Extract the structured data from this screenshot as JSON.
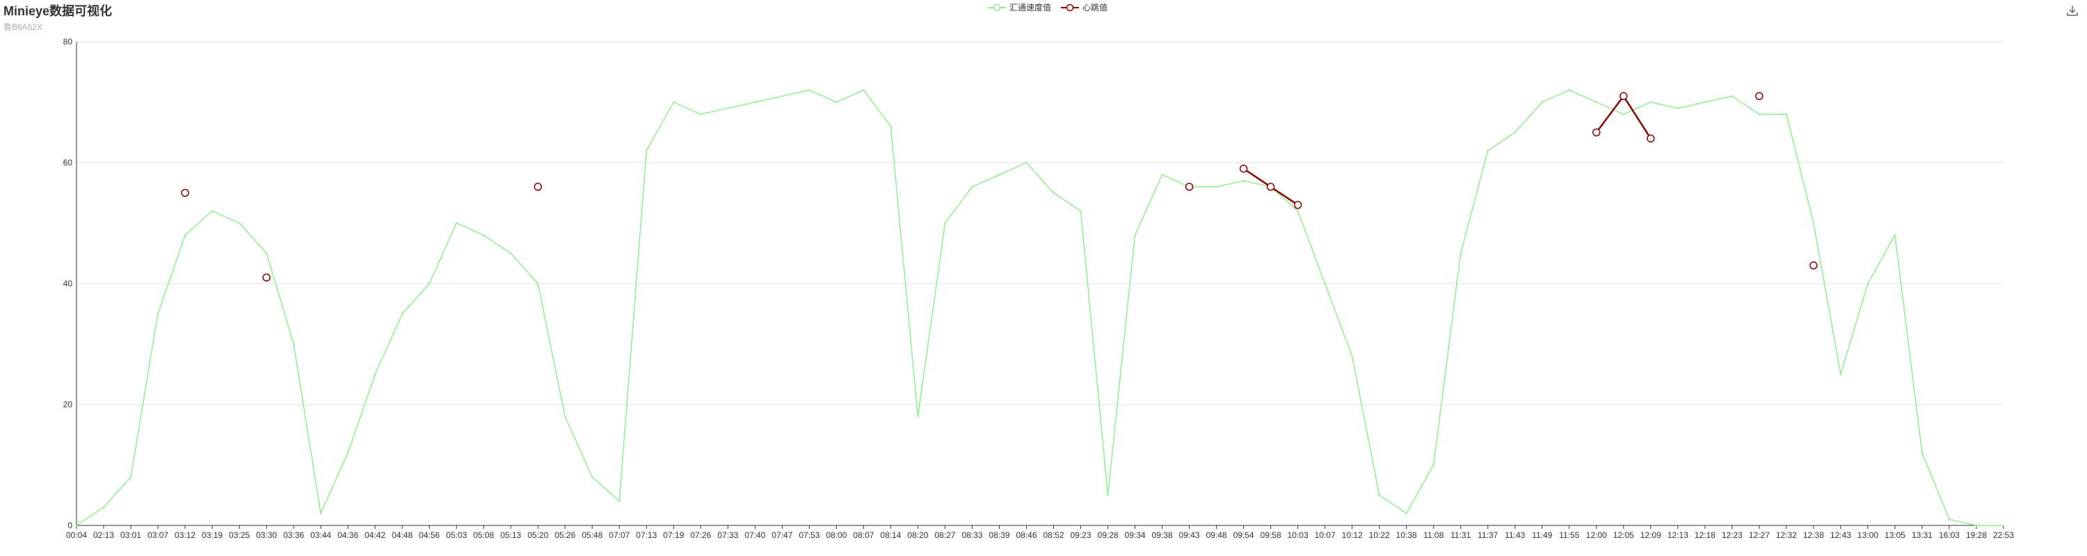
{
  "title": "Minieye数据可视化",
  "subtitle": "鲁B6A52X",
  "legend": {
    "speed_label": "汇通速度值",
    "heartbeat_label": "心跳值"
  },
  "colors": {
    "speed": "#90ee90",
    "heartbeat": "#8b0000",
    "axis": "#333333",
    "grid": "#e0e0e0"
  },
  "icons": {
    "download": "download-icon"
  },
  "chart_data": {
    "type": "line",
    "ylim": [
      0,
      80
    ],
    "yticks": [
      0,
      20,
      40,
      60,
      80
    ],
    "grid": "horizontal",
    "legend_position": "top-center",
    "categories": [
      "00:04",
      "02:13",
      "03:01",
      "03:07",
      "03:12",
      "03:19",
      "03:25",
      "03:30",
      "03:36",
      "03:44",
      "04:36",
      "04:42",
      "04:48",
      "04:56",
      "05:03",
      "05:08",
      "05:13",
      "05:20",
      "05:26",
      "05:48",
      "07:07",
      "07:13",
      "07:19",
      "07:26",
      "07:33",
      "07:40",
      "07:47",
      "07:53",
      "08:00",
      "08:07",
      "08:14",
      "08:20",
      "08:27",
      "08:33",
      "08:39",
      "08:46",
      "08:52",
      "09:23",
      "09:28",
      "09:34",
      "09:38",
      "09:43",
      "09:48",
      "09:54",
      "09:58",
      "10:03",
      "10:07",
      "10:12",
      "10:22",
      "10:38",
      "11:08",
      "11:31",
      "11:37",
      "11:43",
      "11:49",
      "11:55",
      "12:00",
      "12:05",
      "12:09",
      "12:13",
      "12:18",
      "12:23",
      "12:27",
      "12:32",
      "12:38",
      "12:43",
      "13:00",
      "13:05",
      "13:31",
      "16:03",
      "19:28",
      "22:53"
    ],
    "series": [
      {
        "name": "汇通速度值",
        "values": [
          0,
          3,
          8,
          35,
          48,
          52,
          50,
          45,
          30,
          2,
          12,
          25,
          35,
          40,
          50,
          48,
          45,
          40,
          18,
          8,
          4,
          62,
          70,
          68,
          69,
          70,
          71,
          72,
          70,
          72,
          66,
          18,
          50,
          56,
          58,
          60,
          55,
          52,
          5,
          48,
          58,
          56,
          56,
          57,
          56,
          52,
          40,
          28,
          5,
          2,
          10,
          45,
          62,
          65,
          70,
          72,
          70,
          68,
          70,
          69,
          70,
          71,
          68,
          68,
          50,
          25,
          40,
          48,
          12,
          1,
          0,
          0
        ]
      },
      {
        "name": "心跳值",
        "values": [
          null,
          null,
          null,
          null,
          55,
          null,
          null,
          41,
          null,
          null,
          null,
          null,
          null,
          null,
          null,
          null,
          null,
          56,
          null,
          null,
          null,
          null,
          null,
          null,
          null,
          null,
          null,
          null,
          null,
          null,
          null,
          null,
          null,
          null,
          null,
          null,
          null,
          null,
          null,
          null,
          null,
          56,
          null,
          59,
          56,
          53,
          null,
          null,
          null,
          null,
          null,
          null,
          null,
          null,
          null,
          null,
          65,
          71,
          64,
          null,
          null,
          null,
          71,
          null,
          43,
          null,
          null,
          null,
          null,
          null,
          null,
          null
        ]
      }
    ]
  }
}
